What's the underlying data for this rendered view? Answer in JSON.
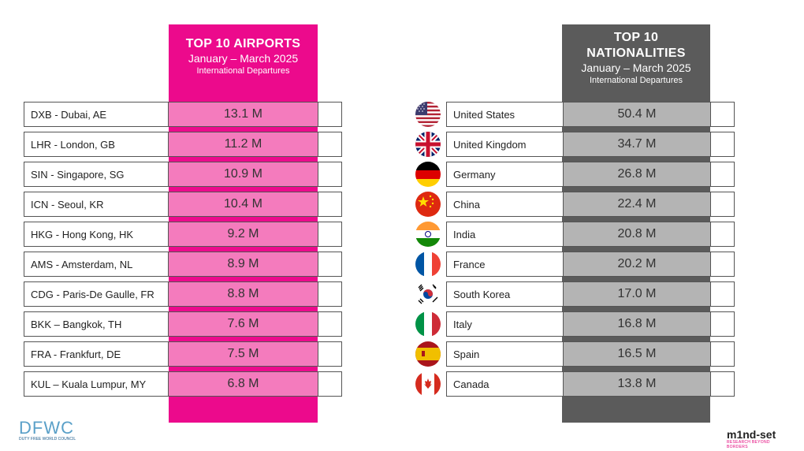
{
  "airports": {
    "title": "TOP 10 AIRPORTS",
    "period": "January – March 2025",
    "subtitle": "International Departures",
    "rows": [
      {
        "label": "DXB - Dubai, AE",
        "value": "13.1 M"
      },
      {
        "label": "LHR - London, GB",
        "value": "11.2 M"
      },
      {
        "label": "SIN - Singapore, SG",
        "value": "10.9 M"
      },
      {
        "label": "ICN - Seoul, KR",
        "value": "10.4 M"
      },
      {
        "label": "HKG - Hong Kong, HK",
        "value": "9.2 M"
      },
      {
        "label": "AMS - Amsterdam, NL",
        "value": "8.9 M"
      },
      {
        "label": "CDG - Paris-De Gaulle, FR",
        "value": "8.8 M"
      },
      {
        "label": "BKK – Bangkok, TH",
        "value": "7.6 M"
      },
      {
        "label": "FRA - Frankfurt, DE",
        "value": "7.5 M"
      },
      {
        "label": "KUL – Kuala Lumpur, MY",
        "value": "6.8 M"
      }
    ]
  },
  "nationalities": {
    "title_line1": "TOP 10",
    "title_line2": "NATIONALITIES",
    "period": "January – March 2025",
    "subtitle": "International Departures",
    "rows": [
      {
        "label": "United States",
        "value": "50.4 M",
        "flag": "us-flag-icon"
      },
      {
        "label": "United Kingdom",
        "value": "34.7 M",
        "flag": "uk-flag-icon"
      },
      {
        "label": "Germany",
        "value": "26.8 M",
        "flag": "germany-flag-icon"
      },
      {
        "label": "China",
        "value": "22.4 M",
        "flag": "china-flag-icon"
      },
      {
        "label": "India",
        "value": "20.8 M",
        "flag": "india-flag-icon"
      },
      {
        "label": "France",
        "value": "20.2 M",
        "flag": "france-flag-icon"
      },
      {
        "label": "South Korea",
        "value": "17.0 M",
        "flag": "south-korea-flag-icon"
      },
      {
        "label": "Italy",
        "value": "16.8 M",
        "flag": "italy-flag-icon"
      },
      {
        "label": "Spain",
        "value": "16.5 M",
        "flag": "spain-flag-icon"
      },
      {
        "label": "Canada",
        "value": "13.8 M",
        "flag": "canada-flag-icon"
      }
    ]
  },
  "logos": {
    "dfwc": "DFWC",
    "dfwc_caption": "DUTY FREE WORLD COUNCIL",
    "mindset": "m1nd-set",
    "mindset_tag": "RESEARCH BEYOND BORDERS"
  },
  "colors": {
    "airports_accent": "#ec0a8c",
    "airports_cell": "#f47bbd",
    "nationalities_accent": "#5b5b5b",
    "nationalities_cell": "#b4b4b4"
  },
  "chart_data": [
    {
      "type": "table",
      "title": "TOP 10 AIRPORTS",
      "subtitle": "January – March 2025 International Departures",
      "categories": [
        "DXB - Dubai, AE",
        "LHR - London, GB",
        "SIN - Singapore, SG",
        "ICN - Seoul, KR",
        "HKG - Hong Kong, HK",
        "AMS - Amsterdam, NL",
        "CDG - Paris-De Gaulle, FR",
        "BKK – Bangkok, TH",
        "FRA - Frankfurt, DE",
        "KUL – Kuala Lumpur, MY"
      ],
      "values": [
        13.1,
        11.2,
        10.9,
        10.4,
        9.2,
        8.9,
        8.8,
        7.6,
        7.5,
        6.8
      ],
      "unit": "M"
    },
    {
      "type": "table",
      "title": "TOP 10 NATIONALITIES",
      "subtitle": "January – March 2025 International Departures",
      "categories": [
        "United States",
        "United Kingdom",
        "Germany",
        "China",
        "India",
        "France",
        "South Korea",
        "Italy",
        "Spain",
        "Canada"
      ],
      "values": [
        50.4,
        34.7,
        26.8,
        22.4,
        20.8,
        20.2,
        17.0,
        16.8,
        16.5,
        13.8
      ],
      "unit": "M"
    }
  ]
}
